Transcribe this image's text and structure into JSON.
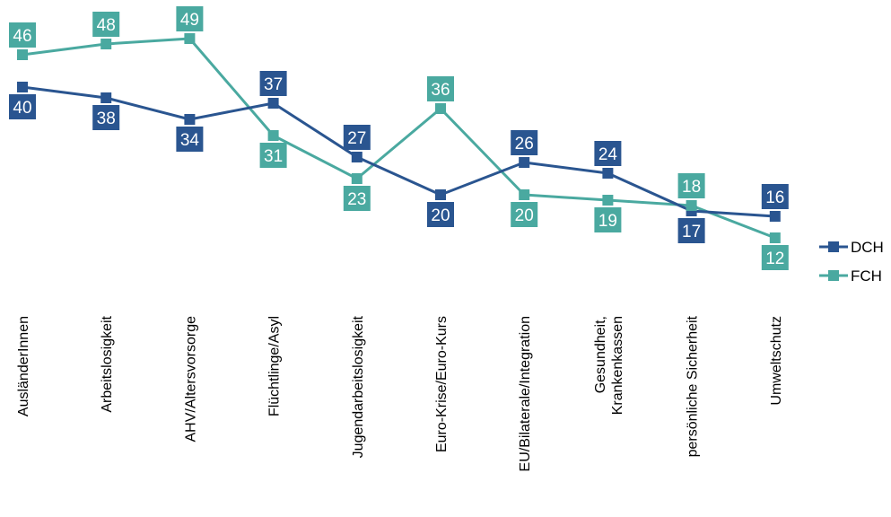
{
  "chart_data": {
    "type": "line",
    "categories": [
      [
        "AusländerInnen"
      ],
      [
        "Arbeitslosigkeit"
      ],
      [
        "AHV/Altersvorsorge"
      ],
      [
        "Flüchtlinge/Asyl"
      ],
      [
        "Jugendarbeitslosigkeit"
      ],
      [
        "Euro-Krise/Euro-Kurs"
      ],
      [
        "EU/Bilaterale/Integration"
      ],
      [
        "Gesundheit,",
        "Krankenkassen"
      ],
      [
        "persönliche Sicherheit"
      ],
      [
        "Umweltschutz"
      ]
    ],
    "series": [
      {
        "name": "DCH",
        "color": "#2a5590",
        "values": [
          40,
          38,
          34,
          37,
          27,
          20,
          26,
          24,
          17,
          16
        ],
        "label_side": [
          "below",
          "below",
          "below",
          "above",
          "above",
          "below",
          "above",
          "above",
          "below",
          "above"
        ]
      },
      {
        "name": "FCH",
        "color": "#4aa9a0",
        "values": [
          46,
          48,
          49,
          31,
          23,
          36,
          20,
          19,
          18,
          12
        ],
        "label_side": [
          "above",
          "above",
          "above",
          "below",
          "below",
          "above",
          "below",
          "below",
          "above",
          "below"
        ]
      }
    ],
    "ylim": [
      0,
      55
    ],
    "grid": false,
    "legend_position": "right"
  }
}
